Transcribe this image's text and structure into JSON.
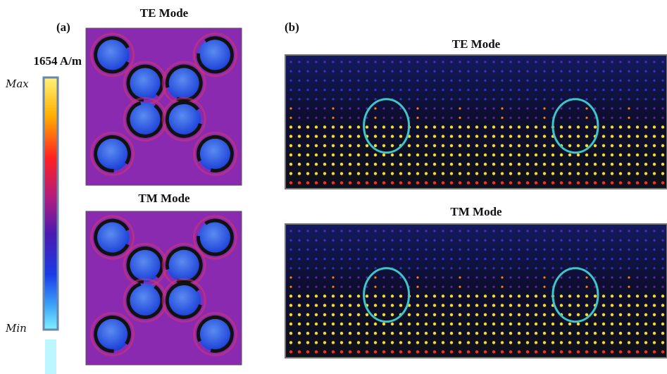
{
  "panel_a": {
    "label": "(a)",
    "colorbar": {
      "max_value": "1654 A/m",
      "max_label": "Max",
      "min_label": "Min"
    },
    "plots": [
      {
        "title": "TE Mode"
      },
      {
        "title": "TM Mode"
      }
    ]
  },
  "panel_b": {
    "label": "(b)",
    "plots": [
      {
        "title": "TE Mode"
      },
      {
        "title": "TM Mode"
      }
    ]
  }
}
